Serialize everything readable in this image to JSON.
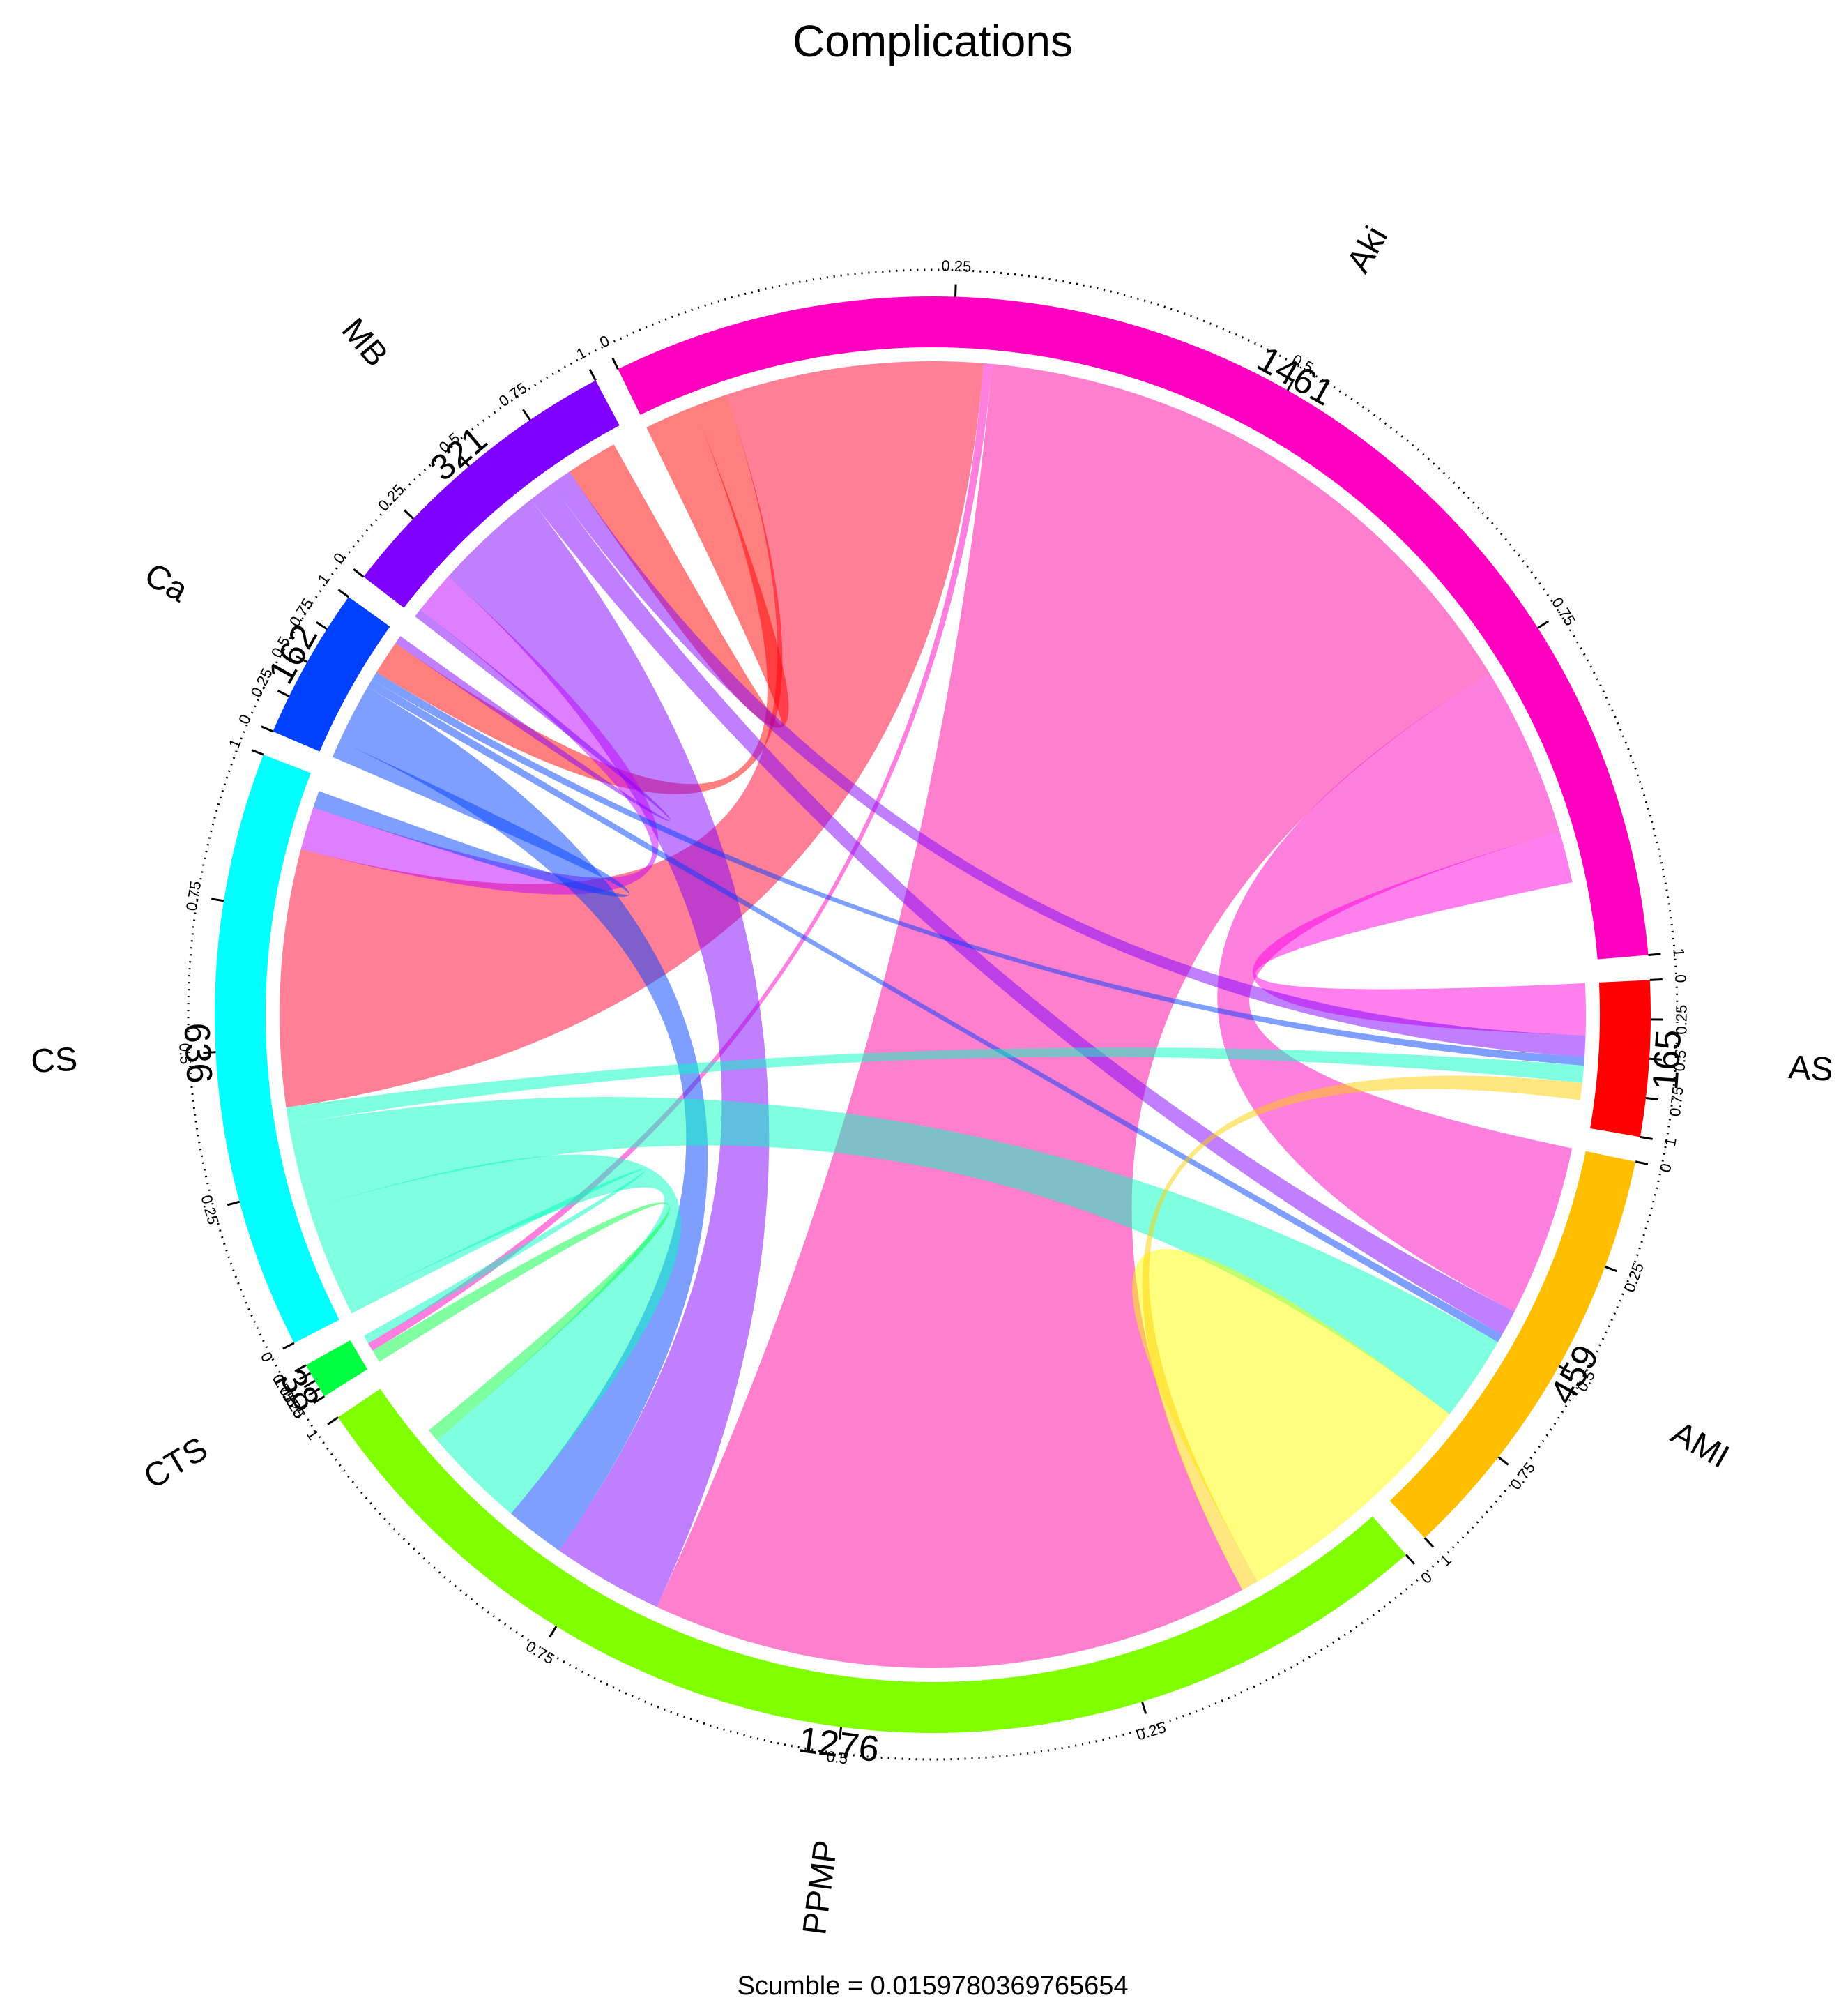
{
  "chart_data": {
    "type": "chord",
    "title": "Complications",
    "caption": "Scumble = 0.0159780369765654",
    "scale_ticks": [
      0,
      0.25,
      0.5,
      0.75,
      1
    ],
    "sectors": [
      {
        "name": "Aki",
        "total": 1461,
        "color": "#ff00c0"
      },
      {
        "name": "AS",
        "total": 165,
        "color": "#ff0000"
      },
      {
        "name": "AMI",
        "total": 459,
        "color": "#ffbf00"
      },
      {
        "name": "PPMP",
        "total": 1276,
        "color": "#80ff00"
      },
      {
        "name": "CTS",
        "total": 38,
        "color": "#00ff40"
      },
      {
        "name": "CS",
        "total": 636,
        "color": "#00ffff"
      },
      {
        "name": "Ca",
        "total": 162,
        "color": "#0040ff"
      },
      {
        "name": "MB",
        "total": 321,
        "color": "#8000ff"
      }
    ],
    "links": [
      {
        "from": "Aki",
        "to": "PPMP",
        "value": 700,
        "color": "#ff00a0"
      },
      {
        "from": "Aki",
        "to": "AMI",
        "value": 200,
        "color": "#ff00c0"
      },
      {
        "from": "Aki",
        "to": "AS",
        "value": 60,
        "color": "#ff00e0"
      },
      {
        "from": "Aki",
        "to": "CS",
        "value": 300,
        "color": "#ff0030"
      },
      {
        "from": "Aki",
        "to": "Ca",
        "value": 40,
        "color": "#ff0000"
      },
      {
        "from": "Aki",
        "to": "MB",
        "value": 60,
        "color": "#ff0000"
      },
      {
        "from": "Aki",
        "to": "CTS",
        "value": 10,
        "color": "#ff00c0"
      },
      {
        "from": "MB",
        "to": "PPMP",
        "value": 130,
        "color": "#8000ff"
      },
      {
        "from": "MB",
        "to": "AS",
        "value": 25,
        "color": "#8000ff"
      },
      {
        "from": "MB",
        "to": "AMI",
        "value": 30,
        "color": "#8000ff"
      },
      {
        "from": "MB",
        "to": "CS",
        "value": 50,
        "color": "#c000ff"
      },
      {
        "from": "MB",
        "to": "Ca",
        "value": 10,
        "color": "#8000ff"
      },
      {
        "from": "Ca",
        "to": "PPMP",
        "value": 70,
        "color": "#0040ff"
      },
      {
        "from": "Ca",
        "to": "AS",
        "value": 10,
        "color": "#0040ff"
      },
      {
        "from": "Ca",
        "to": "AMI",
        "value": 10,
        "color": "#0040ff"
      },
      {
        "from": "Ca",
        "to": "CS",
        "value": 20,
        "color": "#0040ff"
      },
      {
        "from": "CS",
        "to": "PPMP",
        "value": 120,
        "color": "#00ffc0"
      },
      {
        "from": "CS",
        "to": "AMI",
        "value": 100,
        "color": "#00ffc0"
      },
      {
        "from": "CS",
        "to": "AS",
        "value": 20,
        "color": "#00ffc0"
      },
      {
        "from": "CS",
        "to": "CTS",
        "value": 10,
        "color": "#00ffc0"
      },
      {
        "from": "PPMP",
        "to": "AMI",
        "value": 150,
        "color": "#ffff00"
      },
      {
        "from": "PPMP",
        "to": "AS",
        "value": 20,
        "color": "#ffd000"
      },
      {
        "from": "PPMP",
        "to": "CTS",
        "value": 15,
        "color": "#00ff40"
      }
    ]
  }
}
